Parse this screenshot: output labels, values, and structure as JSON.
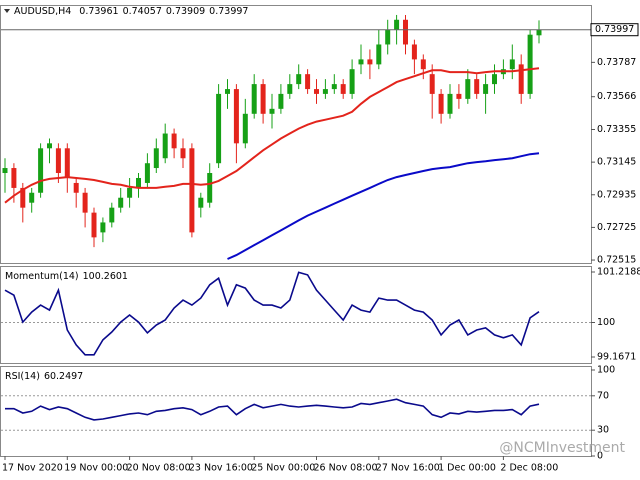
{
  "watermark": "@NCMInvestment",
  "chart_data": [
    {
      "type": "candlestick",
      "title": "AUDUSD,H4",
      "categories": [
        "17 Nov 2020",
        null,
        null,
        null,
        null,
        null,
        null,
        "19 Nov 00:00",
        null,
        null,
        null,
        null,
        null,
        null,
        "20 Nov 08:00",
        null,
        null,
        null,
        null,
        null,
        null,
        "23 Nov 16:00",
        null,
        null,
        null,
        null,
        null,
        null,
        "25 Nov 00:00",
        null,
        null,
        null,
        null,
        null,
        null,
        "26 Nov 08:00",
        null,
        null,
        null,
        null,
        null,
        null,
        "27 Nov 16:00",
        null,
        null,
        null,
        null,
        null,
        null,
        "1 Dec 00:00",
        null,
        null,
        null,
        null,
        null,
        null,
        "2 Dec 08:00",
        null,
        null,
        null,
        null
      ],
      "open": [
        0.73075,
        0.73107,
        0.72979,
        0.72884,
        0.72948,
        0.73234,
        0.73234,
        0.73234,
        0.73011,
        0.72948,
        0.7282,
        0.72693,
        0.72757,
        0.72852,
        0.72916,
        0.72979,
        0.73011,
        0.73107,
        0.7317,
        0.73329,
        0.73234,
        0.73234,
        0.72852,
        0.72884,
        0.73138,
        0.73584,
        0.73615,
        0.73266,
        0.73456,
        0.73647,
        0.73456,
        0.73488,
        0.73584,
        0.73647,
        0.73711,
        0.73615,
        0.73584,
        0.73615,
        0.73647,
        0.73584,
        0.73774,
        0.73806,
        0.73774,
        0.73902,
        0.73997,
        0.74061,
        0.73902,
        0.73806,
        0.73711,
        0.73584,
        0.73456,
        0.73584,
        0.73552,
        0.73679,
        0.73584,
        0.73647,
        0.73711,
        0.73743,
        0.73774,
        0.73584,
        0.73961
      ],
      "high": [
        0.7317,
        0.73138,
        0.73011,
        0.72979,
        0.73266,
        0.73297,
        0.73266,
        0.73266,
        0.73043,
        0.72979,
        0.72852,
        0.72789,
        0.72884,
        0.72979,
        0.73043,
        0.73075,
        0.73202,
        0.73297,
        0.73393,
        0.73361,
        0.73297,
        0.73266,
        0.72948,
        0.73138,
        0.73647,
        0.73679,
        0.73647,
        0.73552,
        0.73711,
        0.73679,
        0.73584,
        0.73647,
        0.73711,
        0.73774,
        0.73743,
        0.73679,
        0.73679,
        0.73711,
        0.73679,
        0.73806,
        0.73902,
        0.7387,
        0.73997,
        0.74061,
        0.74092,
        0.74092,
        0.73933,
        0.73838,
        0.73774,
        0.73615,
        0.73647,
        0.73647,
        0.73743,
        0.73711,
        0.73711,
        0.73774,
        0.73806,
        0.73902,
        0.73838,
        0.73997,
        0.74057
      ],
      "low": [
        0.72948,
        0.72884,
        0.72757,
        0.7282,
        0.72916,
        0.73138,
        0.73011,
        0.72948,
        0.72852,
        0.72725,
        0.72598,
        0.7263,
        0.72725,
        0.7282,
        0.72852,
        0.72916,
        0.72979,
        0.73075,
        0.73138,
        0.7317,
        0.73107,
        0.72661,
        0.72789,
        0.72852,
        0.73107,
        0.73488,
        0.73138,
        0.73234,
        0.73425,
        0.73393,
        0.73361,
        0.73456,
        0.73552,
        0.73615,
        0.73584,
        0.7352,
        0.73552,
        0.73584,
        0.73552,
        0.73552,
        0.73711,
        0.73679,
        0.73743,
        0.73838,
        0.73902,
        0.73838,
        0.73711,
        0.73679,
        0.73425,
        0.73393,
        0.73425,
        0.73488,
        0.7352,
        0.73552,
        0.73456,
        0.73584,
        0.73679,
        0.73679,
        0.7352,
        0.73552,
        0.73909
      ],
      "close": [
        0.73107,
        0.72979,
        0.72852,
        0.72948,
        0.73234,
        0.73266,
        0.73075,
        0.73043,
        0.72948,
        0.7282,
        0.72661,
        0.72757,
        0.72852,
        0.72916,
        0.72979,
        0.73043,
        0.73138,
        0.73234,
        0.73329,
        0.73234,
        0.7317,
        0.72693,
        0.72916,
        0.73075,
        0.73584,
        0.73615,
        0.73266,
        0.73456,
        0.73647,
        0.73456,
        0.73488,
        0.73584,
        0.73647,
        0.73711,
        0.73615,
        0.73584,
        0.73615,
        0.73647,
        0.73584,
        0.73743,
        0.73806,
        0.73774,
        0.73902,
        0.73997,
        0.74061,
        0.73902,
        0.73806,
        0.73743,
        0.73584,
        0.73456,
        0.73584,
        0.73552,
        0.73679,
        0.73584,
        0.73647,
        0.73711,
        0.73743,
        0.73806,
        0.73584,
        0.73965,
        0.73997
      ],
      "up_color": "#16a016",
      "down_color": "#e3241c",
      "lines": [
        {
          "color": "#e3241c",
          "values": [
            0.72884,
            0.72929,
            0.72967,
            0.72999,
            0.73024,
            0.73037,
            0.73043,
            0.73049,
            0.73043,
            0.73037,
            0.7303,
            0.73018,
            0.73005,
            0.72999,
            0.72986,
            0.72979,
            0.72979,
            0.72979,
            0.72986,
            0.72992,
            0.73005,
            0.73005,
            0.72999,
            0.73005,
            0.73024,
            0.73056,
            0.73088,
            0.73132,
            0.73177,
            0.73221,
            0.73259,
            0.73297,
            0.73329,
            0.73361,
            0.73386,
            0.73406,
            0.73418,
            0.73431,
            0.73444,
            0.73469,
            0.7352,
            0.73565,
            0.73596,
            0.73628,
            0.7366,
            0.73679,
            0.73698,
            0.73717,
            0.73736,
            0.73736,
            0.73724,
            0.73724,
            0.73724,
            0.73717,
            0.73724,
            0.7373,
            0.7373,
            0.7373,
            0.73736,
            0.73743,
            0.73749
          ]
        },
        {
          "color": "#0a0ac8",
          "values": [
            null,
            null,
            null,
            null,
            null,
            null,
            null,
            null,
            null,
            null,
            null,
            null,
            null,
            null,
            null,
            null,
            null,
            null,
            null,
            null,
            null,
            null,
            null,
            null,
            null,
            0.72522,
            0.72547,
            0.72579,
            0.72611,
            0.72642,
            0.72674,
            0.72706,
            0.72738,
            0.7277,
            0.72801,
            0.72827,
            0.72852,
            0.72878,
            0.72903,
            0.72929,
            0.72954,
            0.72979,
            0.73005,
            0.7303,
            0.73049,
            0.73062,
            0.73075,
            0.73088,
            0.731,
            0.73107,
            0.73113,
            0.73126,
            0.73138,
            0.73145,
            0.73151,
            0.73158,
            0.73164,
            0.7317,
            0.73183,
            0.73196,
            0.73202
          ]
        }
      ],
      "ylim": [
        0.72496,
        0.74156
      ],
      "yticks": [
        0.72515,
        0.72725,
        0.72935,
        0.73145,
        0.73355,
        0.73566,
        0.73787
      ]
    },
    {
      "type": "line",
      "title": "Momentum(14)",
      "color": "#0a0a8c",
      "values": [
        100.78,
        100.66,
        100.01,
        100.25,
        100.42,
        100.3,
        100.78,
        99.82,
        99.46,
        99.22,
        99.22,
        99.58,
        99.77,
        100.01,
        100.18,
        100.01,
        99.75,
        99.94,
        100.06,
        100.35,
        100.54,
        100.42,
        100.59,
        100.91,
        101.07,
        100.42,
        100.91,
        100.83,
        100.54,
        100.42,
        100.42,
        100.35,
        100.54,
        101.21,
        101.15,
        100.78,
        100.54,
        100.3,
        100.06,
        100.42,
        100.3,
        100.25,
        100.59,
        100.54,
        100.54,
        100.42,
        100.3,
        100.25,
        100.06,
        99.7,
        99.94,
        100.06,
        99.7,
        99.82,
        99.87,
        99.7,
        99.63,
        99.7,
        99.46,
        100.11,
        100.2601
      ],
      "ylim": [
        99.1671,
        101.2188
      ],
      "yticks": [
        99.1671,
        100,
        101.2188
      ],
      "levels": [
        100
      ]
    },
    {
      "type": "line",
      "title": "RSI(14)",
      "color": "#0a0a8c",
      "values": [
        55,
        55,
        50,
        52,
        58,
        54,
        57,
        55,
        50,
        45,
        42,
        43,
        45,
        47,
        49,
        50,
        48,
        52,
        53,
        55,
        56,
        54,
        48,
        52,
        57,
        58,
        48,
        55,
        60,
        56,
        58,
        60,
        58,
        57,
        58,
        59,
        58,
        57,
        56,
        57,
        61,
        60,
        62,
        64,
        66,
        62,
        60,
        58,
        48,
        45,
        50,
        49,
        52,
        51,
        52,
        53,
        53,
        54,
        48,
        58,
        60.2497
      ],
      "ylim": [
        0,
        100
      ],
      "yticks": [
        0,
        30,
        70,
        100
      ],
      "levels": [
        30,
        70
      ]
    }
  ]
}
